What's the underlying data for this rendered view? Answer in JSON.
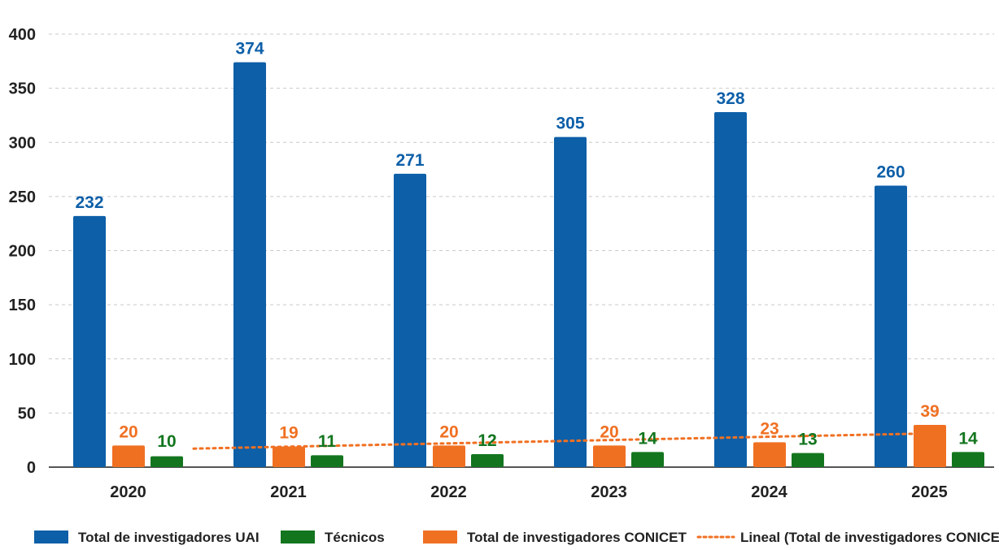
{
  "chart_data": {
    "type": "bar",
    "categories": [
      "2020",
      "2021",
      "2022",
      "2023",
      "2024",
      "2025"
    ],
    "series": [
      {
        "name": "Total de investigadores UAI",
        "color": "#0d5fa8",
        "values": [
          232,
          374,
          271,
          305,
          328,
          260
        ]
      },
      {
        "name": "Total de investigadores CONICET",
        "color": "#f07022",
        "values": [
          20,
          19,
          20,
          20,
          23,
          39
        ]
      },
      {
        "name": "Técnicos",
        "color": "#13761f",
        "values": [
          10,
          11,
          12,
          14,
          13,
          14
        ]
      }
    ],
    "trendline": {
      "name": "Lineal (Total de investigadores CONICET)",
      "of_series": "Total de investigadores CONICET",
      "type": "linear",
      "color": "#f07022",
      "style": "dotted"
    },
    "ylim": [
      0,
      400
    ],
    "yticks": [
      0,
      50,
      100,
      150,
      200,
      250,
      300,
      350,
      400
    ],
    "grid": true,
    "legend": {
      "position": "bottom",
      "entries": [
        "Total de investigadores UAI",
        "Técnicos",
        "Total de investigadores CONICET",
        "Lineal (Total de investigadores CONICET)"
      ]
    },
    "title": "",
    "xlabel": "",
    "ylabel": ""
  }
}
